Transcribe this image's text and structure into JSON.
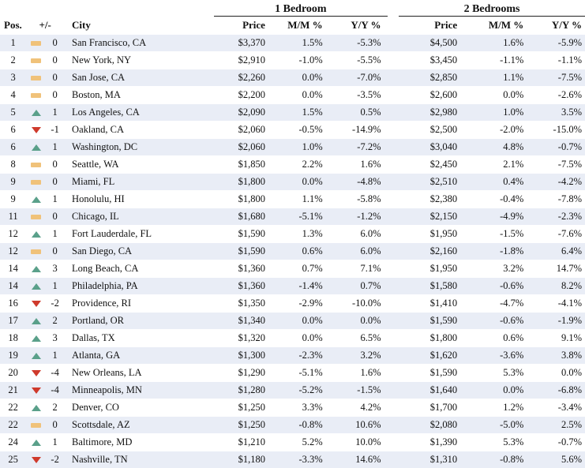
{
  "colors": {
    "stripe": "#e9edf6",
    "flat": "#f0c27a",
    "up": "#5aa08a",
    "down": "#cf3a2c"
  },
  "groups": {
    "one_bed": "1 Bedroom",
    "two_bed": "2 Bedrooms"
  },
  "headers": {
    "pos": "Pos.",
    "change": "+/-",
    "city": "City",
    "price1": "Price",
    "mm1": "M/M %",
    "yy1": "Y/Y %",
    "price2": "Price",
    "mm2": "M/M %",
    "yy2": "Y/Y %"
  },
  "rows": [
    {
      "pos": "1",
      "trend": "flat",
      "chg": "0",
      "city": "San Francisco, CA",
      "p1": "$3,370",
      "mm1": "1.5%",
      "yy1": "-5.3%",
      "p2": "$4,500",
      "mm2": "1.6%",
      "yy2": "-5.9%"
    },
    {
      "pos": "2",
      "trend": "flat",
      "chg": "0",
      "city": "New York, NY",
      "p1": "$2,910",
      "mm1": "-1.0%",
      "yy1": "-5.5%",
      "p2": "$3,450",
      "mm2": "-1.1%",
      "yy2": "-1.1%"
    },
    {
      "pos": "3",
      "trend": "flat",
      "chg": "0",
      "city": "San Jose, CA",
      "p1": "$2,260",
      "mm1": "0.0%",
      "yy1": "-7.0%",
      "p2": "$2,850",
      "mm2": "1.1%",
      "yy2": "-7.5%"
    },
    {
      "pos": "4",
      "trend": "flat",
      "chg": "0",
      "city": "Boston, MA",
      "p1": "$2,200",
      "mm1": "0.0%",
      "yy1": "-3.5%",
      "p2": "$2,600",
      "mm2": "0.0%",
      "yy2": "-2.6%"
    },
    {
      "pos": "5",
      "trend": "up",
      "chg": "1",
      "city": "Los Angeles, CA",
      "p1": "$2,090",
      "mm1": "1.5%",
      "yy1": "0.5%",
      "p2": "$2,980",
      "mm2": "1.0%",
      "yy2": "3.5%"
    },
    {
      "pos": "6",
      "trend": "down",
      "chg": "-1",
      "city": "Oakland, CA",
      "p1": "$2,060",
      "mm1": "-0.5%",
      "yy1": "-14.9%",
      "p2": "$2,500",
      "mm2": "-2.0%",
      "yy2": "-15.0%"
    },
    {
      "pos": "6",
      "trend": "up",
      "chg": "1",
      "city": "Washington, DC",
      "p1": "$2,060",
      "mm1": "1.0%",
      "yy1": "-7.2%",
      "p2": "$3,040",
      "mm2": "4.8%",
      "yy2": "-0.7%"
    },
    {
      "pos": "8",
      "trend": "flat",
      "chg": "0",
      "city": "Seattle, WA",
      "p1": "$1,850",
      "mm1": "2.2%",
      "yy1": "1.6%",
      "p2": "$2,450",
      "mm2": "2.1%",
      "yy2": "-7.5%"
    },
    {
      "pos": "9",
      "trend": "flat",
      "chg": "0",
      "city": "Miami, FL",
      "p1": "$1,800",
      "mm1": "0.0%",
      "yy1": "-4.8%",
      "p2": "$2,510",
      "mm2": "0.4%",
      "yy2": "-4.2%"
    },
    {
      "pos": "9",
      "trend": "up",
      "chg": "1",
      "city": "Honolulu, HI",
      "p1": "$1,800",
      "mm1": "1.1%",
      "yy1": "-5.8%",
      "p2": "$2,380",
      "mm2": "-0.4%",
      "yy2": "-7.8%"
    },
    {
      "pos": "11",
      "trend": "flat",
      "chg": "0",
      "city": "Chicago, IL",
      "p1": "$1,680",
      "mm1": "-5.1%",
      "yy1": "-1.2%",
      "p2": "$2,150",
      "mm2": "-4.9%",
      "yy2": "-2.3%"
    },
    {
      "pos": "12",
      "trend": "up",
      "chg": "1",
      "city": "Fort Lauderdale, FL",
      "p1": "$1,590",
      "mm1": "1.3%",
      "yy1": "6.0%",
      "p2": "$1,950",
      "mm2": "-1.5%",
      "yy2": "-7.6%"
    },
    {
      "pos": "12",
      "trend": "flat",
      "chg": "0",
      "city": "San Diego, CA",
      "p1": "$1,590",
      "mm1": "0.6%",
      "yy1": "6.0%",
      "p2": "$2,160",
      "mm2": "-1.8%",
      "yy2": "6.4%"
    },
    {
      "pos": "14",
      "trend": "up",
      "chg": "3",
      "city": "Long Beach, CA",
      "p1": "$1,360",
      "mm1": "0.7%",
      "yy1": "7.1%",
      "p2": "$1,950",
      "mm2": "3.2%",
      "yy2": "14.7%"
    },
    {
      "pos": "14",
      "trend": "up",
      "chg": "1",
      "city": "Philadelphia, PA",
      "p1": "$1,360",
      "mm1": "-1.4%",
      "yy1": "0.7%",
      "p2": "$1,580",
      "mm2": "-0.6%",
      "yy2": "8.2%"
    },
    {
      "pos": "16",
      "trend": "down",
      "chg": "-2",
      "city": "Providence, RI",
      "p1": "$1,350",
      "mm1": "-2.9%",
      "yy1": "-10.0%",
      "p2": "$1,410",
      "mm2": "-4.7%",
      "yy2": "-4.1%"
    },
    {
      "pos": "17",
      "trend": "up",
      "chg": "2",
      "city": "Portland, OR",
      "p1": "$1,340",
      "mm1": "0.0%",
      "yy1": "0.0%",
      "p2": "$1,590",
      "mm2": "-0.6%",
      "yy2": "-1.9%"
    },
    {
      "pos": "18",
      "trend": "up",
      "chg": "3",
      "city": "Dallas, TX",
      "p1": "$1,320",
      "mm1": "0.0%",
      "yy1": "6.5%",
      "p2": "$1,800",
      "mm2": "0.6%",
      "yy2": "9.1%"
    },
    {
      "pos": "19",
      "trend": "up",
      "chg": "1",
      "city": "Atlanta, GA",
      "p1": "$1,300",
      "mm1": "-2.3%",
      "yy1": "3.2%",
      "p2": "$1,620",
      "mm2": "-3.6%",
      "yy2": "3.8%"
    },
    {
      "pos": "20",
      "trend": "down",
      "chg": "-4",
      "city": "New Orleans, LA",
      "p1": "$1,290",
      "mm1": "-5.1%",
      "yy1": "1.6%",
      "p2": "$1,590",
      "mm2": "5.3%",
      "yy2": "0.0%"
    },
    {
      "pos": "21",
      "trend": "down",
      "chg": "-4",
      "city": "Minneapolis, MN",
      "p1": "$1,280",
      "mm1": "-5.2%",
      "yy1": "-1.5%",
      "p2": "$1,640",
      "mm2": "0.0%",
      "yy2": "-6.8%"
    },
    {
      "pos": "22",
      "trend": "up",
      "chg": "2",
      "city": "Denver, CO",
      "p1": "$1,250",
      "mm1": "3.3%",
      "yy1": "4.2%",
      "p2": "$1,700",
      "mm2": "1.2%",
      "yy2": "-3.4%"
    },
    {
      "pos": "22",
      "trend": "flat",
      "chg": "0",
      "city": "Scottsdale, AZ",
      "p1": "$1,250",
      "mm1": "-0.8%",
      "yy1": "10.6%",
      "p2": "$2,080",
      "mm2": "-5.0%",
      "yy2": "2.5%"
    },
    {
      "pos": "24",
      "trend": "up",
      "chg": "1",
      "city": "Baltimore, MD",
      "p1": "$1,210",
      "mm1": "5.2%",
      "yy1": "10.0%",
      "p2": "$1,390",
      "mm2": "5.3%",
      "yy2": "-0.7%"
    },
    {
      "pos": "25",
      "trend": "down",
      "chg": "-2",
      "city": "Nashville, TN",
      "p1": "$1,180",
      "mm1": "-3.3%",
      "yy1": "14.6%",
      "p2": "$1,310",
      "mm2": "-0.8%",
      "yy2": "5.6%"
    }
  ]
}
